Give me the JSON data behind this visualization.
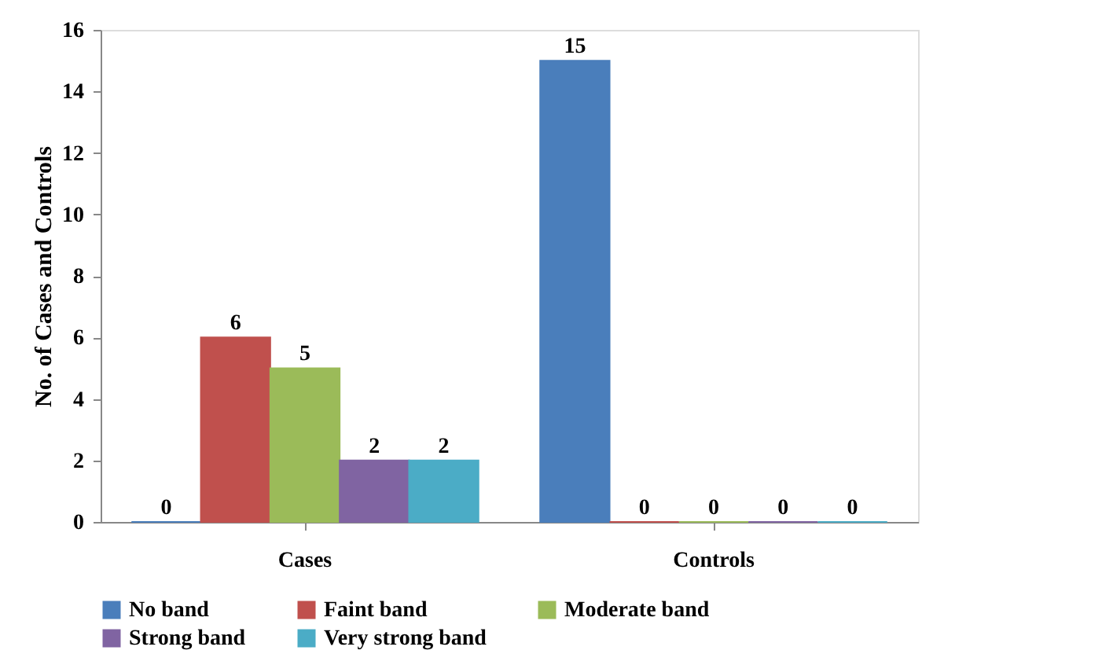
{
  "chart_data": {
    "type": "bar",
    "ylabel": "No. of Cases and Controls",
    "categories": [
      "Cases",
      "Controls"
    ],
    "series": [
      {
        "name": "No band",
        "color": "#4a7ebb",
        "values": [
          0,
          15
        ]
      },
      {
        "name": "Faint band",
        "color": "#c0504d",
        "values": [
          6,
          0
        ]
      },
      {
        "name": "Moderate band",
        "color": "#9bbb59",
        "values": [
          5,
          0
        ]
      },
      {
        "name": "Strong band",
        "color": "#8064a2",
        "values": [
          2,
          0
        ]
      },
      {
        "name": "Very strong band",
        "color": "#4bacc6",
        "values": [
          2,
          0
        ]
      }
    ],
    "ylim": [
      0,
      16
    ],
    "yticks": [
      0,
      2,
      4,
      6,
      8,
      10,
      12,
      14,
      16
    ],
    "grid": false,
    "legend": "bottom",
    "data_labels": true
  }
}
